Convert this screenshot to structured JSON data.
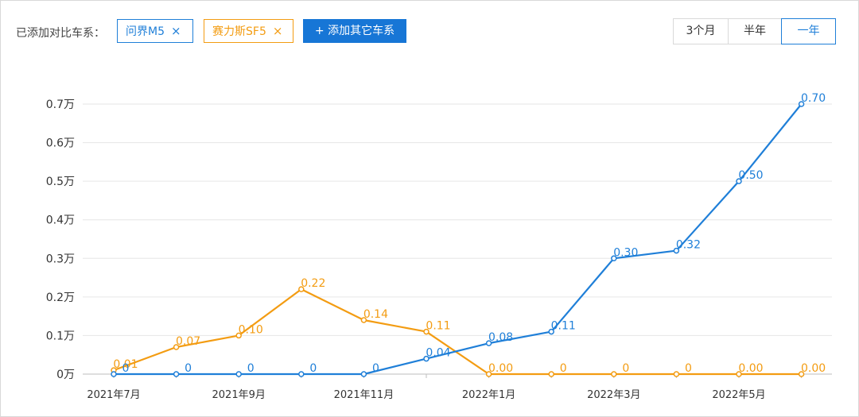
{
  "toolbar": {
    "label": "已添加对比车系：",
    "chips": [
      {
        "name": "问界M5",
        "close": "×",
        "color": "#1f7fd8"
      },
      {
        "name": "赛力斯SF5",
        "close": "×",
        "color": "#f39c12"
      }
    ],
    "add_button": "+ 添加其它车系"
  },
  "range_options": [
    {
      "label": "3个月",
      "selected": false
    },
    {
      "label": "半年",
      "selected": false
    },
    {
      "label": "一年",
      "selected": true
    }
  ],
  "chart_data": {
    "type": "line",
    "y_ticks": [
      "0万",
      "0.1万",
      "0.2万",
      "0.3万",
      "0.4万",
      "0.5万",
      "0.6万",
      "0.7万"
    ],
    "ylim": [
      0,
      0.7
    ],
    "x_labels": [
      {
        "index": 0,
        "text": "2021年7月"
      },
      {
        "index": 2,
        "text": "2021年9月"
      },
      {
        "index": 4,
        "text": "2021年11月"
      },
      {
        "index": 6,
        "text": "2022年1月"
      },
      {
        "index": 8,
        "text": "2022年3月"
      },
      {
        "index": 10,
        "text": "2022年5月"
      }
    ],
    "point_count": 12,
    "grid": true,
    "series": [
      {
        "name": "问界M5",
        "color": "#1f7fd8",
        "values": [
          0,
          0,
          0,
          0,
          0,
          0.04,
          0.08,
          0.11,
          0.3,
          0.32,
          0.5,
          0.7
        ],
        "labels": [
          "0",
          "0",
          "0",
          "0",
          "0",
          "0.04",
          "0.08",
          "0.11",
          "0.30",
          "0.32",
          "0.50",
          "0.70"
        ]
      },
      {
        "name": "赛力斯SF5",
        "color": "#f39c12",
        "values": [
          0.01,
          0.07,
          0.1,
          0.22,
          0.14,
          0.11,
          0.0,
          0,
          0,
          0,
          0.0,
          0.0
        ],
        "labels": [
          "0.01",
          "0.07",
          "0.10",
          "0.22",
          "0.14",
          "0.11",
          "0.00",
          "0",
          "0",
          "0",
          "0.00",
          "0.00"
        ]
      }
    ]
  }
}
